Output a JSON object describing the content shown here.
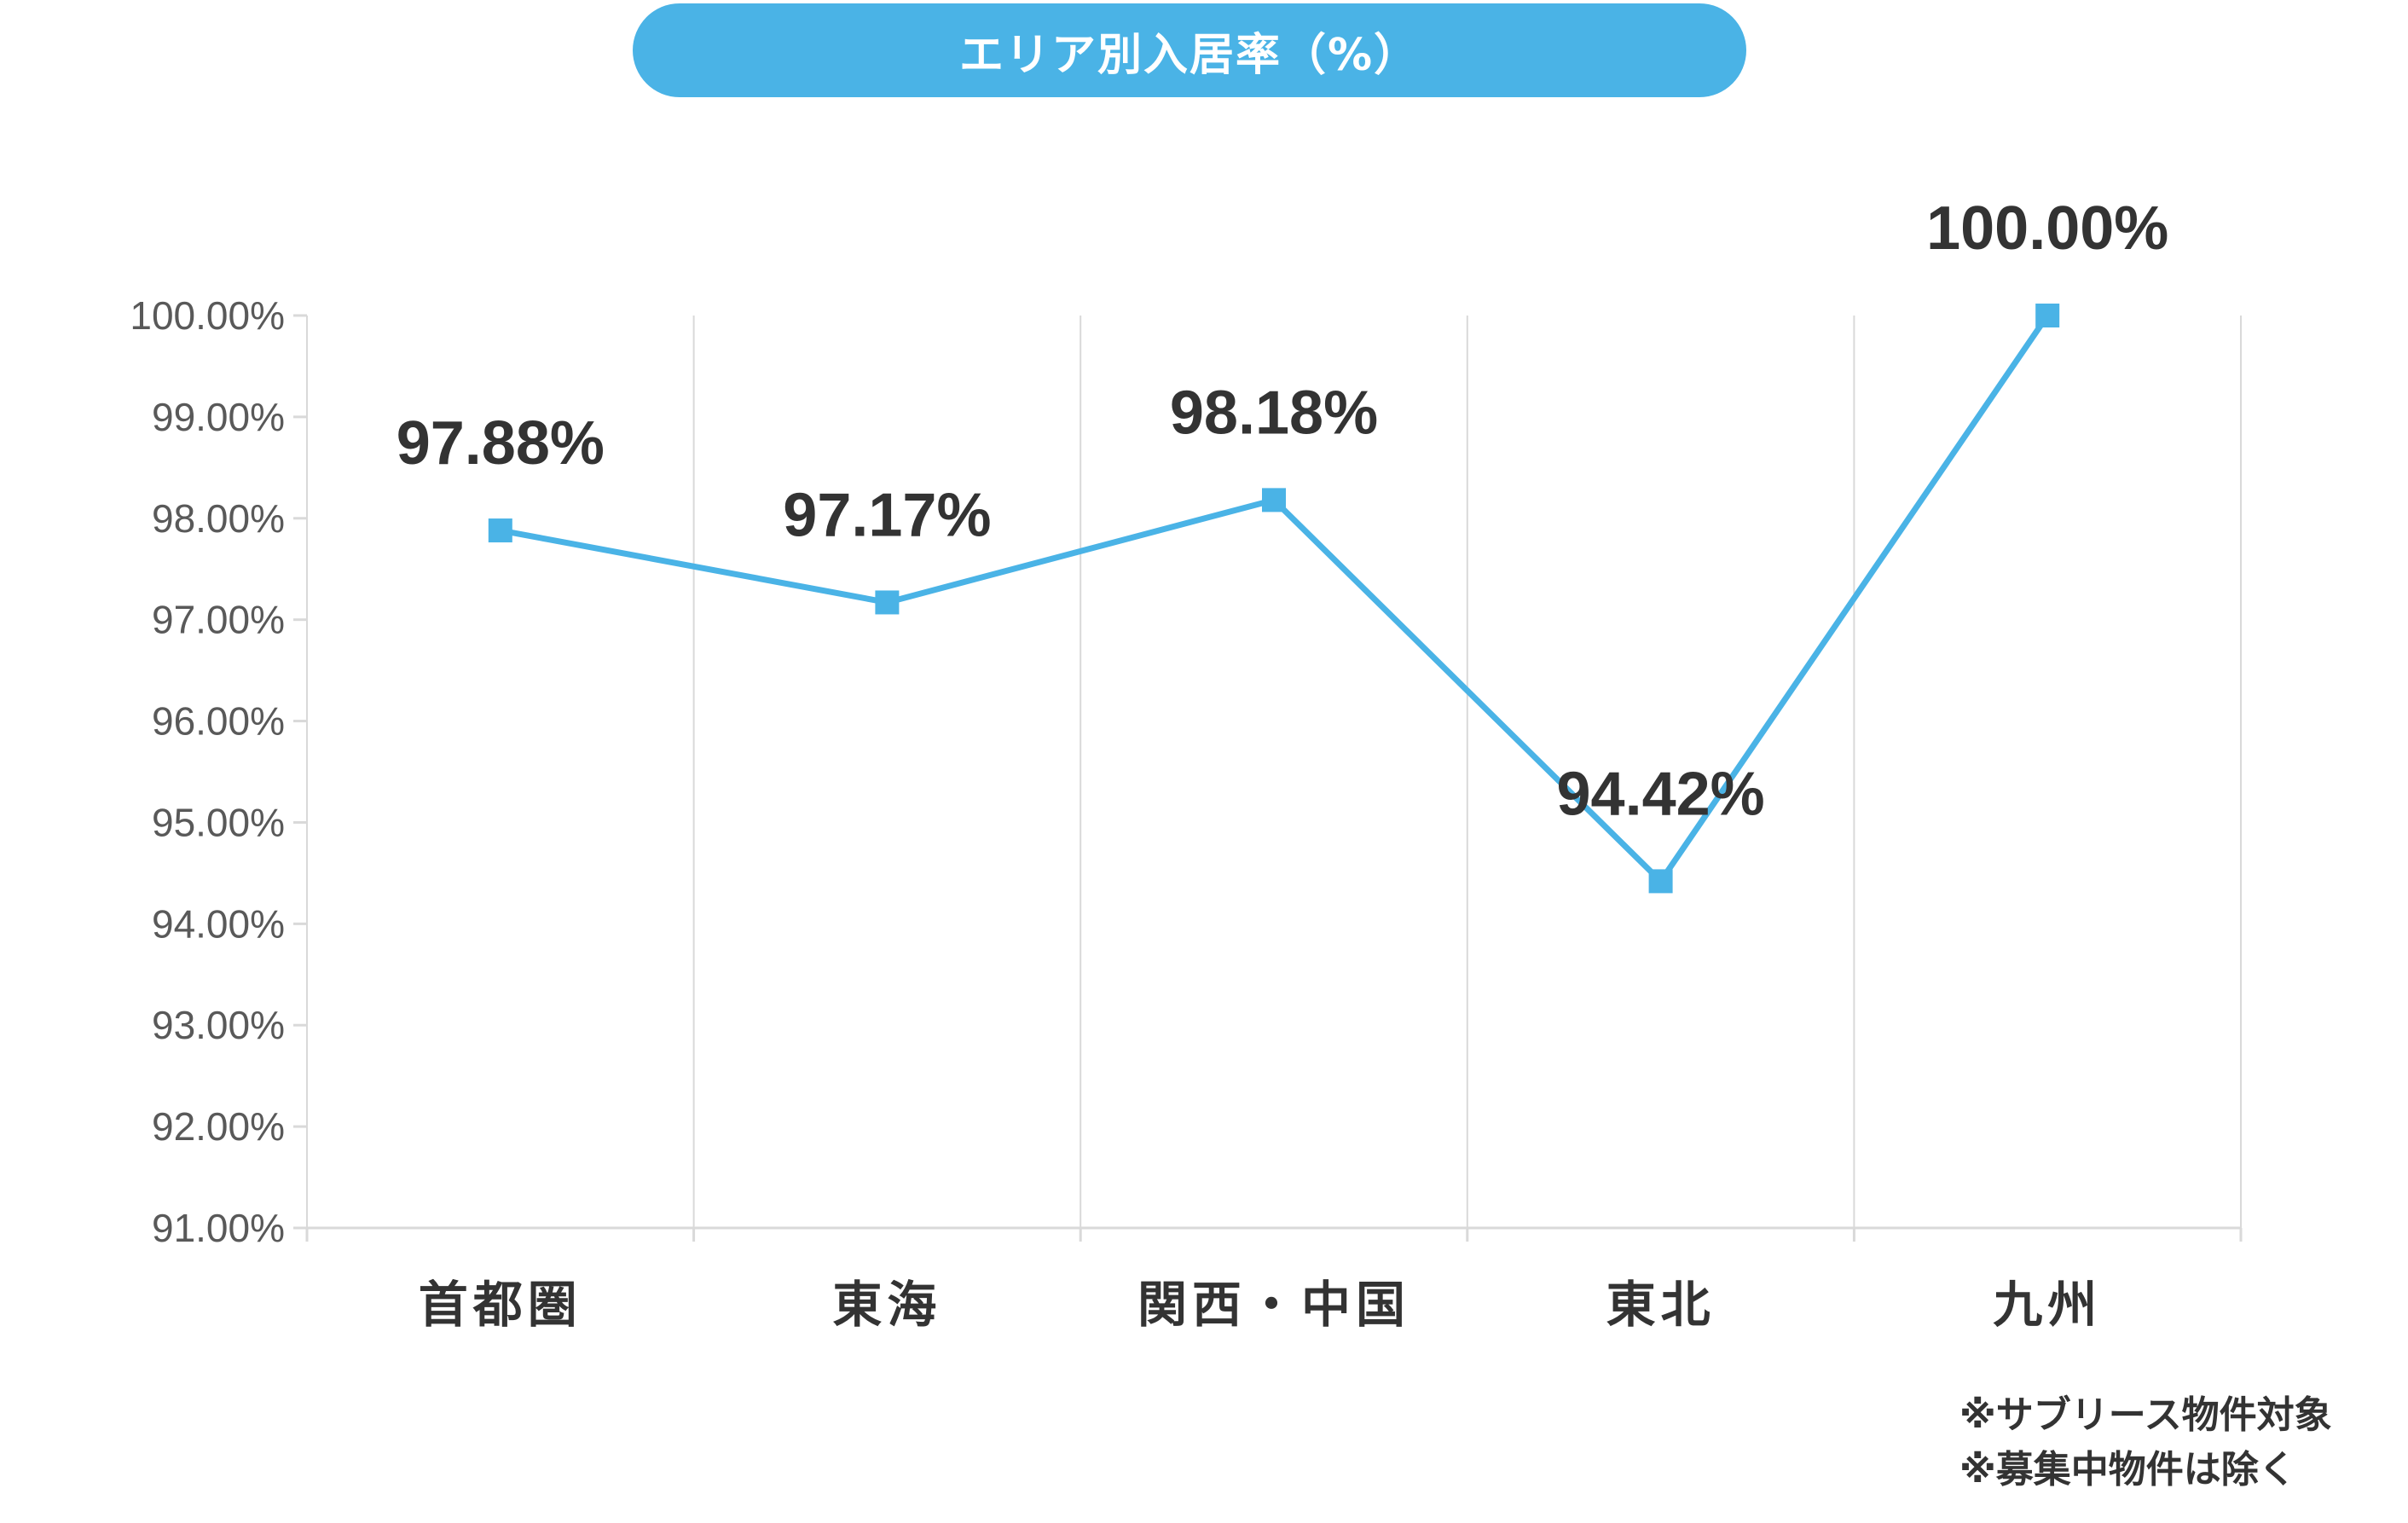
{
  "chart_data": {
    "type": "line",
    "title": "エリア別入居率（%）",
    "categories": [
      "首都圏",
      "東海",
      "関西・中国",
      "東北",
      "九州"
    ],
    "series": [
      {
        "values": [
          97.88,
          97.17,
          98.18,
          94.42,
          100.0
        ]
      }
    ],
    "data_labels": [
      "97.88%",
      "97.17%",
      "98.18%",
      "94.42%",
      "100.00%"
    ],
    "y_ticks": [
      "91.00%",
      "92.00%",
      "93.00%",
      "94.00%",
      "95.00%",
      "96.00%",
      "97.00%",
      "98.00%",
      "99.00%",
      "100.00%"
    ],
    "ylim": [
      91,
      100
    ],
    "xlabel": "",
    "ylabel": "",
    "grid": "vertical",
    "legend": "none",
    "colors": {
      "line": "#4ab3e6",
      "title_bg": "#4ab3e6",
      "grid": "#d9d9d9",
      "text": "#333333",
      "tick_text": "#595959"
    }
  },
  "notes": [
    "※サブリース物件対象",
    "※募集中物件は除く"
  ]
}
